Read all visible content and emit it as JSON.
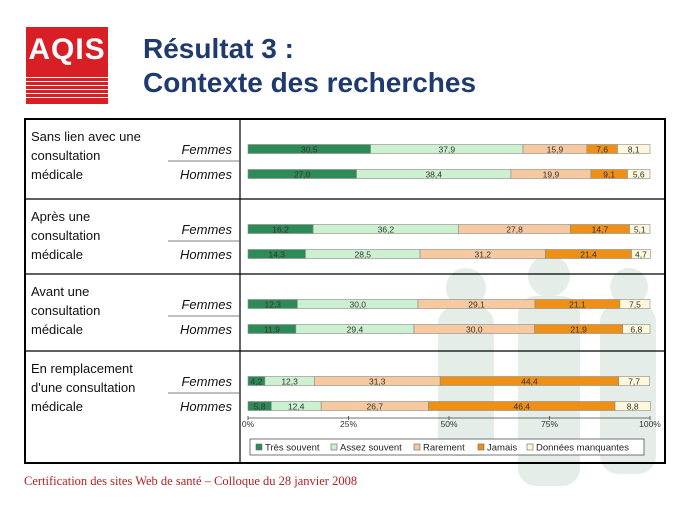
{
  "logo": {
    "text": "AQIS"
  },
  "title": {
    "line1": "Résultat 3 :",
    "line2": "Contexte des recherches"
  },
  "footer": "Certification des sites Web de santé –  Colloque du 28 janvier 2008",
  "colors": {
    "title": "#1f3a6e",
    "logo": "#d91f26",
    "footer": "#b22222",
    "series": [
      "#2e8b57",
      "#ccf0d0",
      "#f6c9a0",
      "#ee8f16",
      "#fdf7dc"
    ]
  },
  "chart_data": {
    "type": "bar",
    "orientation": "horizontal",
    "stacked": true,
    "percent_stacked": true,
    "xlim": [
      0,
      100
    ],
    "x_ticks": [
      "0%",
      "25%",
      "50%",
      "75%",
      "100%"
    ],
    "groups": [
      {
        "label": "Sans lien avec une consultation médicale",
        "rows": [
          {
            "label": "Femmes",
            "values": [
              30.5,
              37.9,
              15.9,
              7.6,
              8.1
            ],
            "labels": [
              "30,5",
              "37,9",
              "15,9",
              "7,6",
              "8,1"
            ]
          },
          {
            "label": "Hommes",
            "values": [
              27.0,
              38.4,
              19.9,
              9.1,
              5.6
            ],
            "labels": [
              "27,0",
              "38,4",
              "19,9",
              "9,1",
              "5,6"
            ]
          }
        ]
      },
      {
        "label": "Après une consultation médicale",
        "rows": [
          {
            "label": "Femmes",
            "values": [
              16.2,
              36.2,
              27.8,
              14.7,
              5.1
            ],
            "labels": [
              "16,2",
              "36,2",
              "27,8",
              "14,7",
              "5,1"
            ]
          },
          {
            "label": "Hommes",
            "values": [
              14.3,
              28.5,
              31.2,
              21.4,
              4.7
            ],
            "labels": [
              "14,3",
              "28,5",
              "31,2",
              "21,4",
              "4,7"
            ]
          }
        ]
      },
      {
        "label": "Avant une consultation médicale",
        "rows": [
          {
            "label": "Femmes",
            "values": [
              12.3,
              30.0,
              29.1,
              21.1,
              7.5
            ],
            "labels": [
              "12,3",
              "30,0",
              "29,1",
              "21,1",
              "7,5"
            ]
          },
          {
            "label": "Hommes",
            "values": [
              11.9,
              29.4,
              30.0,
              21.9,
              6.8
            ],
            "labels": [
              "11,9",
              "29,4",
              "30,0",
              "21,9",
              "6,8"
            ]
          }
        ]
      },
      {
        "label": "En remplacement d'une consultation médicale",
        "rows": [
          {
            "label": "Femmes",
            "values": [
              4.2,
              12.3,
              31.3,
              44.4,
              7.7
            ],
            "labels": [
              "4,2",
              "12,3",
              "31,3",
              "44,4",
              "7,7"
            ]
          },
          {
            "label": "Hommes",
            "values": [
              5.8,
              12.4,
              26.7,
              46.4,
              8.8
            ],
            "labels": [
              "5,8",
              "12,4",
              "26,7",
              "46,4",
              "8,8"
            ]
          }
        ]
      }
    ],
    "series": [
      {
        "name": "Très souvent"
      },
      {
        "name": "Assez souvent"
      },
      {
        "name": "Rarement"
      },
      {
        "name": "Jamais"
      },
      {
        "name": "Données manquantes"
      }
    ],
    "legend": "bottom"
  }
}
